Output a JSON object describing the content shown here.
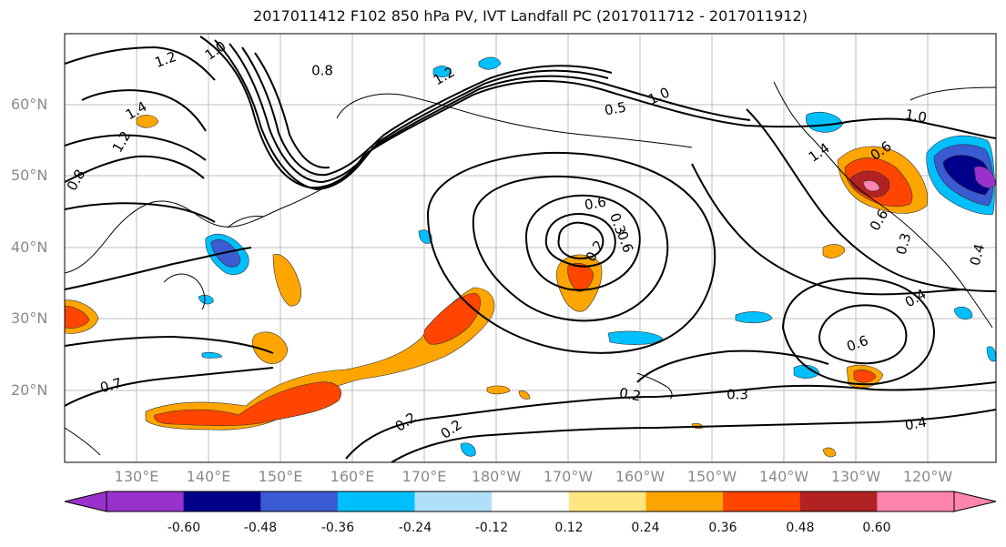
{
  "title": "2017011412 F102 850 hPa PV, IVT Landfall PC (2017011712 - 2017011912)",
  "lat_labels": [
    "60°N",
    "50°N",
    "40°N",
    "30°N",
    "20°N"
  ],
  "lon_labels": [
    "130°E",
    "140°E",
    "150°E",
    "160°E",
    "170°E",
    "180°W",
    "170°W",
    "160°W",
    "150°W",
    "140°W",
    "130°W",
    "120°W"
  ],
  "contour_labels": [
    "1.0",
    "1.2",
    "0.8",
    "1.4",
    "1.2",
    "0.8",
    "1.2",
    "1.0",
    "0.5",
    "1.0",
    "1.4",
    "0.6",
    "0.6",
    "0.6",
    "0.3",
    "0.6",
    "0.3",
    "0.4",
    "0.4",
    "0.6",
    "0.7",
    "0.2",
    "0.2",
    "0.2",
    "0.3",
    "0.4",
    "0.2"
  ],
  "colorbar": {
    "ticks": [
      "-0.60",
      "-0.48",
      "-0.36",
      "-0.24",
      "-0.12",
      "0.12",
      "0.24",
      "0.36",
      "0.48",
      "0.60"
    ],
    "colors": [
      "#9932cc",
      "#00008b",
      "#3a5bd1",
      "#00bfff",
      "#b0e0f8",
      "#ffffff",
      "#ffe680",
      "#ffa500",
      "#ff4500",
      "#b22222",
      "#ff85b0"
    ]
  }
}
